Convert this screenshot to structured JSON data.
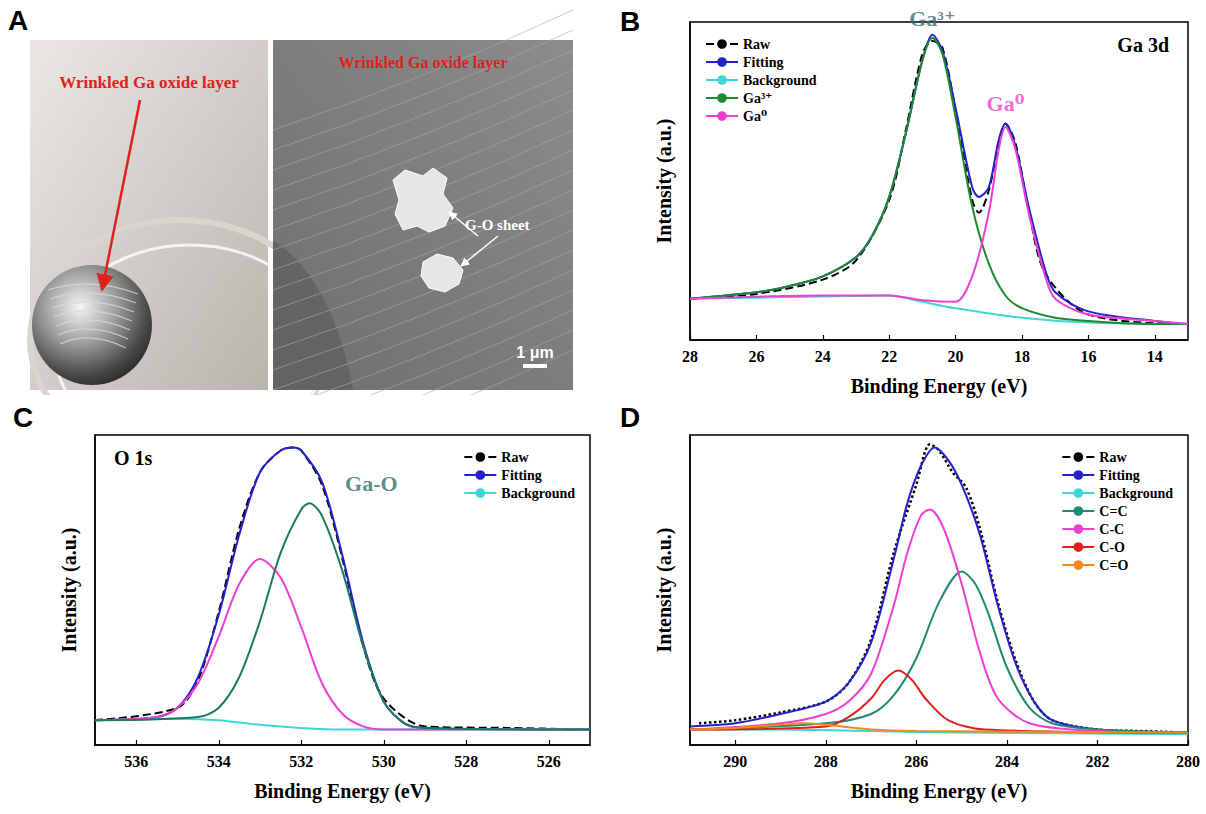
{
  "panel_a": {
    "letter": "A",
    "photo": {
      "label": "Wrinkled Ga oxide layer"
    },
    "micrograph": {
      "label": "Wrinkled Ga oxide layer",
      "feature_label": "G-O sheet",
      "scale_bar": "1 μm"
    }
  },
  "chart_data": [
    {
      "type": "line",
      "letter": "B",
      "title": "Ga 3d",
      "x_label": "Binding Energy (eV)",
      "y_label": "Intensity (a.u.)",
      "xlim": [
        28,
        13
      ],
      "xticks": [
        28,
        26,
        24,
        22,
        20,
        18,
        16,
        14
      ],
      "ylim": [
        0,
        100
      ],
      "yticks": [],
      "tick_labels": "x",
      "grid": false,
      "legend": "upper left",
      "series": [
        {
          "name": "Raw",
          "color": "#000000",
          "line_style": "dashed",
          "x": [
            28,
            26,
            24,
            23,
            22,
            21.5,
            21,
            20.7,
            20.4,
            20,
            19.5,
            19.3,
            19,
            18.7,
            18.5,
            18.2,
            17.8,
            17.3,
            16,
            13
          ],
          "values": [
            13,
            14.5,
            19,
            25,
            44,
            66,
            90,
            94,
            92,
            72,
            44,
            40,
            47,
            62,
            68,
            62,
            41,
            21,
            8,
            5
          ]
        },
        {
          "name": "Fitting",
          "color": "#2222c8",
          "line_style": "solid",
          "x": [
            28,
            26,
            25,
            24,
            23,
            22.5,
            22,
            21.5,
            21,
            20.7,
            20.4,
            20,
            19.5,
            19.3,
            19,
            18.7,
            18.5,
            18.2,
            17.8,
            17.3,
            17,
            16,
            14,
            13
          ],
          "values": [
            13,
            15,
            17,
            20,
            26,
            33,
            45,
            65,
            88,
            96,
            91,
            73,
            48,
            45,
            48,
            63,
            68,
            61,
            42,
            22,
            15,
            9,
            6,
            5
          ]
        },
        {
          "name": "Background",
          "color": "#3fd6d6",
          "line_style": "solid",
          "x": [
            28,
            25,
            22,
            21,
            20,
            18,
            16,
            13
          ],
          "values": [
            13,
            13.5,
            14,
            12,
            10,
            7,
            5.5,
            5
          ]
        },
        {
          "name": "Ga³⁺",
          "color": "#1e8a2e",
          "line_style": "solid",
          "x": [
            28,
            26,
            25,
            24,
            23,
            22.5,
            22,
            21.5,
            21,
            20.7,
            20.4,
            20,
            19.5,
            19,
            18.5,
            18,
            17,
            16,
            14,
            13
          ],
          "values": [
            13,
            15,
            17,
            20,
            26,
            33,
            45,
            65,
            88,
            95,
            90,
            70,
            42,
            24,
            14,
            10,
            7,
            6,
            5,
            5
          ]
        },
        {
          "name": "Ga⁰",
          "color": "#ee3fd2",
          "line_style": "solid",
          "x": [
            28,
            24,
            22,
            21,
            20,
            19.5,
            19,
            18.7,
            18.5,
            18.2,
            17.8,
            17.3,
            17,
            16,
            14,
            13
          ],
          "values": [
            13,
            14,
            14,
            12.5,
            12,
            20,
            40,
            60,
            67,
            60,
            40,
            20,
            13,
            8,
            6,
            5
          ]
        }
      ],
      "annotations": [
        {
          "text": "Ga³⁺",
          "x": 20.7,
          "y": 97,
          "color": "#3a6b78"
        },
        {
          "text": "Ga⁰",
          "x": 18.5,
          "y": 70,
          "color": "#ee3fd2"
        }
      ]
    },
    {
      "type": "line",
      "letter": "C",
      "title": "O 1s",
      "x_label": "Binding Energy (eV)",
      "y_label": "Intensity (a.u.)",
      "xlim": [
        537,
        525
      ],
      "xticks": [
        536,
        534,
        532,
        530,
        528,
        526
      ],
      "ylim": [
        0,
        100
      ],
      "yticks": [],
      "tick_labels": "x",
      "grid": false,
      "legend": "upper right",
      "series": [
        {
          "name": "Raw",
          "color": "#000000",
          "line_style": "dashed",
          "x": [
            537,
            535,
            534.5,
            534,
            533.5,
            533,
            532.5,
            532.2,
            532,
            531.5,
            531,
            530.5,
            530,
            529,
            527,
            525
          ],
          "values": [
            8,
            12,
            21,
            43,
            70,
            88,
            95,
            96,
            95,
            84,
            60,
            32,
            15,
            6,
            5.5,
            5
          ]
        },
        {
          "name": "Fitting",
          "color": "#2222c8",
          "line_style": "solid",
          "x": [
            537,
            535.5,
            535,
            534.5,
            534,
            533.5,
            533,
            532.5,
            532.2,
            532,
            531.5,
            531,
            530.5,
            530,
            529.5,
            529,
            525
          ],
          "values": [
            8,
            9,
            12,
            22,
            42,
            68,
            88,
            95,
            96,
            95,
            85,
            61,
            33,
            14,
            7,
            5.5,
            5
          ]
        },
        {
          "name": "Background",
          "color": "#3fd6d6",
          "line_style": "solid",
          "x": [
            537,
            535,
            534,
            533,
            532,
            531,
            525
          ],
          "values": [
            8,
            8.5,
            8,
            6.5,
            5.5,
            5,
            5
          ]
        },
        {
          "color": "#ee3fd2",
          "line_style": "solid",
          "x": [
            537,
            535.5,
            535,
            534.5,
            534,
            533.5,
            533,
            532.5,
            532,
            531.5,
            531,
            530.5,
            530,
            525
          ],
          "values": [
            8,
            9,
            12,
            20,
            35,
            52,
            60,
            54,
            38,
            20,
            10,
            6,
            5,
            5
          ]
        },
        {
          "color": "#1e7a5e",
          "line_style": "solid",
          "x": [
            537,
            534.5,
            534,
            533.5,
            533,
            532.5,
            532,
            531.8,
            531.5,
            531,
            530.5,
            530,
            529.5,
            529,
            525
          ],
          "values": [
            8,
            9,
            12,
            22,
            40,
            62,
            76,
            78,
            74,
            56,
            32,
            14,
            7,
            5.5,
            5
          ]
        }
      ],
      "annotations": [
        {
          "text": "Ga-O",
          "x": 530.3,
          "y": 80,
          "color": "#2f6f6f"
        }
      ]
    },
    {
      "type": "line",
      "letter": "D",
      "x_label": "Binding Energy (eV)",
      "y_label": "Intensity (a.u.)",
      "xlim": [
        291,
        280
      ],
      "xticks": [
        290,
        288,
        286,
        284,
        282,
        280
      ],
      "ylim": [
        0,
        100
      ],
      "yticks": [],
      "tick_labels": "x",
      "grid": false,
      "legend": "upper right",
      "series": [
        {
          "name": "Raw",
          "color": "#000000",
          "line_style": "dotted",
          "x": [
            290.8,
            290,
            289,
            288,
            287.5,
            287,
            286.5,
            286,
            285.7,
            285.5,
            285.2,
            284.9,
            284.6,
            284.2,
            283.8,
            283.4,
            283,
            282,
            281,
            280
          ],
          "values": [
            7,
            8,
            10.5,
            14,
            20,
            34,
            62,
            84,
            97,
            95,
            88,
            83,
            70,
            46,
            27,
            14,
            8,
            5,
            4.5,
            4
          ]
        },
        {
          "name": "Fitting",
          "color": "#2222c8",
          "line_style": "solid",
          "x": [
            291,
            290,
            289,
            288,
            287.5,
            287,
            286.5,
            286.2,
            285.9,
            285.6,
            285.3,
            285,
            284.6,
            284.2,
            283.8,
            283.4,
            283,
            282,
            280
          ],
          "values": [
            6,
            7,
            10,
            14,
            20,
            33,
            60,
            78,
            90,
            96,
            92,
            84,
            68,
            45,
            26,
            14,
            8,
            5,
            4
          ]
        },
        {
          "name": "Background",
          "color": "#3fd6d6",
          "line_style": "solid",
          "x": [
            291,
            289,
            287,
            285,
            280
          ],
          "values": [
            5,
            5,
            4.5,
            4,
            3.5
          ]
        },
        {
          "name": "C=C",
          "color": "#1f8a70",
          "line_style": "solid",
          "x": [
            291,
            288,
            287,
            286.5,
            286,
            285.5,
            285,
            284.7,
            284.4,
            284,
            283.5,
            283,
            282,
            280
          ],
          "values": [
            5,
            7,
            10,
            16,
            28,
            46,
            56,
            52,
            42,
            25,
            12,
            7,
            5,
            4
          ]
        },
        {
          "name": "C-C",
          "color": "#ee3fd2",
          "line_style": "solid",
          "x": [
            291,
            289,
            288,
            287.5,
            287,
            286.5,
            286.2,
            285.9,
            285.7,
            285.4,
            285,
            284.6,
            284.2,
            283.5,
            282,
            280
          ],
          "values": [
            5,
            7,
            10,
            14,
            23,
            45,
            62,
            74,
            76,
            70,
            52,
            30,
            15,
            7,
            4.5,
            4
          ]
        },
        {
          "name": "C-O",
          "color": "#e0201c",
          "line_style": "solid",
          "x": [
            291,
            288,
            287.5,
            287,
            286.7,
            286.4,
            286.1,
            285.8,
            285.3,
            284.5,
            280
          ],
          "values": [
            5,
            6,
            9,
            15,
            21,
            24,
            21,
            15,
            8,
            5,
            4
          ]
        },
        {
          "name": "C=O",
          "color": "#f08a1c",
          "line_style": "solid",
          "x": [
            291,
            290,
            289,
            288.5,
            288,
            287,
            286,
            280
          ],
          "values": [
            5,
            5.5,
            6.5,
            7,
            6.5,
            5,
            4.5,
            4
          ]
        }
      ]
    }
  ]
}
